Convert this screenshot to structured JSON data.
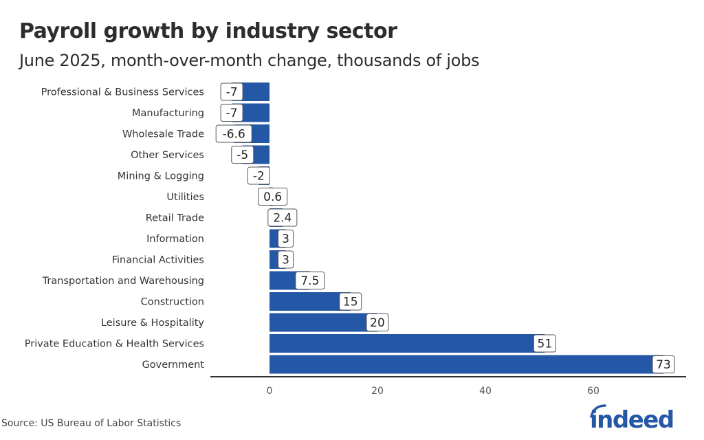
{
  "chart_data": {
    "type": "bar",
    "orientation": "horizontal",
    "title": "Payroll growth by industry sector",
    "subtitle": "June 2025, month-over-month change, thousands of jobs",
    "categories": [
      "Professional & Business Services",
      "Manufacturing",
      "Wholesale Trade",
      "Other Services",
      "Mining & Logging",
      "Utilities",
      "Retail Trade",
      "Information",
      "Financial Activities",
      "Transportation and Warehousing",
      "Construction",
      "Leisure & Hospitality",
      "Private Education & Health Services",
      "Government"
    ],
    "values": [
      -7,
      -7,
      -6.6,
      -5,
      -2,
      0.6,
      2.4,
      3,
      3,
      7.5,
      15,
      20,
      51,
      73
    ],
    "data_labels": [
      "-7",
      "-7",
      "-6.6",
      "-5",
      "-2",
      "0.6",
      "2.4",
      "3",
      "3",
      "7.5",
      "15",
      "20",
      "51",
      "73"
    ],
    "xlabel": "",
    "ylabel": "",
    "xlim": [
      -11,
      75
    ],
    "xticks": [
      0,
      20,
      40,
      60
    ],
    "xtick_labels": [
      "0",
      "20",
      "40",
      "60"
    ],
    "grid": false,
    "legend": "none",
    "bar_color": "#2557a7"
  },
  "source": "Source: US Bureau of Labor Statistics",
  "brand": "indeed"
}
